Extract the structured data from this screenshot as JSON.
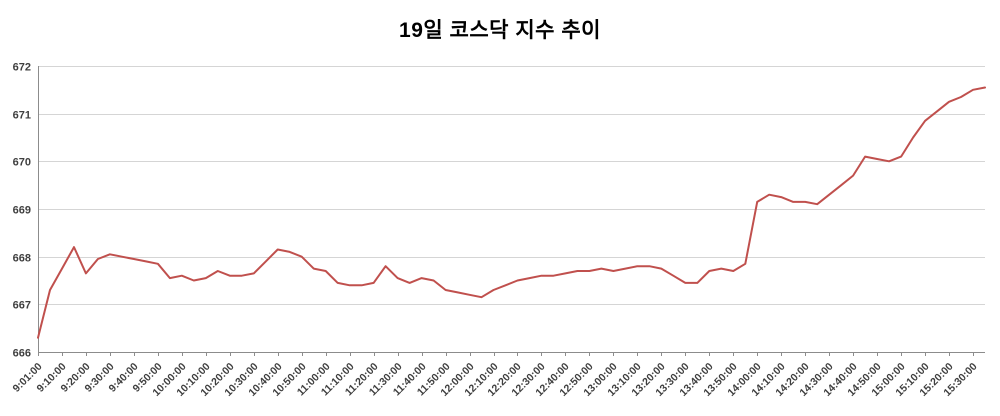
{
  "chart_data": {
    "type": "line",
    "title": "19일 코스닥 지수 추이",
    "xlabel": "",
    "ylabel": "",
    "ylim": [
      666,
      672
    ],
    "yticks": [
      666,
      667,
      668,
      669,
      670,
      671,
      672
    ],
    "grid": true,
    "legend": "none",
    "line_color": "#C0504D",
    "axis_color": "#8C8C8C",
    "gridline_color": "#D5D5D5",
    "label_color": "#3F3F3F",
    "title_color": "#000000",
    "label_every": 2,
    "x_labels": [
      "9:01:00",
      "9:10:00",
      "9:20:00",
      "9:30:00",
      "9:40:00",
      "9:50:00",
      "10:00:00",
      "10:10:00",
      "10:20:00",
      "10:30:00",
      "10:40:00",
      "10:50:00",
      "11:00:00",
      "11:10:00",
      "11:20:00",
      "11:30:00",
      "11:40:00",
      "11:50:00",
      "12:00:00",
      "12:10:00",
      "12:20:00",
      "12:30:00",
      "12:40:00",
      "12:50:00",
      "13:00:00",
      "13:10:00",
      "13:20:00",
      "13:30:00",
      "13:40:00",
      "13:50:00",
      "14:00:00",
      "14:10:00",
      "14:20:00",
      "14:30:00",
      "14:40:00",
      "14:50:00",
      "15:00:00",
      "15:10:00",
      "15:20:00",
      "15:30:00"
    ],
    "values": [
      666.3,
      667.3,
      667.75,
      668.2,
      667.65,
      667.95,
      668.05,
      668.0,
      667.95,
      667.9,
      667.85,
      667.55,
      667.6,
      667.5,
      667.55,
      667.7,
      667.6,
      667.6,
      667.65,
      667.9,
      668.15,
      668.1,
      668.0,
      667.75,
      667.7,
      667.45,
      667.4,
      667.4,
      667.45,
      667.8,
      667.55,
      667.45,
      667.55,
      667.5,
      667.3,
      667.25,
      667.2,
      667.15,
      667.3,
      667.4,
      667.5,
      667.55,
      667.6,
      667.6,
      667.65,
      667.7,
      667.7,
      667.75,
      667.7,
      667.75,
      667.8,
      667.8,
      667.75,
      667.6,
      667.45,
      667.45,
      667.7,
      667.75,
      667.7,
      667.85,
      669.15,
      669.3,
      669.25,
      669.15,
      669.15,
      669.1,
      669.3,
      669.5,
      669.7,
      670.1,
      670.05,
      670.0,
      670.1,
      670.5,
      670.85,
      671.05,
      671.25,
      671.35,
      671.5,
      671.55
    ]
  }
}
